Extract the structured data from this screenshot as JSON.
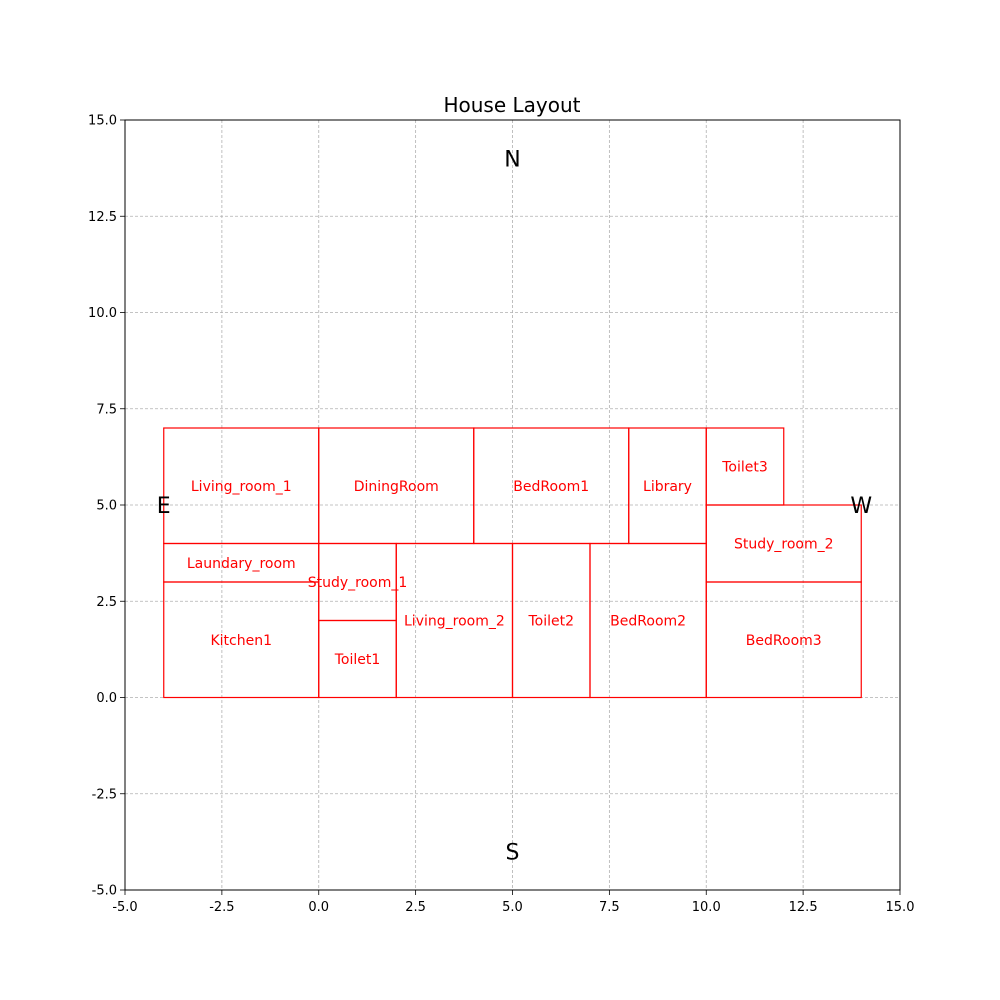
{
  "chart_data": {
    "type": "floorplan",
    "title": "House Layout",
    "xlim": [
      -5,
      15
    ],
    "ylim": [
      -5,
      15
    ],
    "xticks": [
      "-5.0",
      "-2.5",
      "0.0",
      "2.5",
      "5.0",
      "7.5",
      "10.0",
      "12.5",
      "15.0"
    ],
    "yticks": [
      "-5.0",
      "-2.5",
      "0.0",
      "2.5",
      "5.0",
      "7.5",
      "10.0",
      "12.5",
      "15.0"
    ],
    "grid": true,
    "room_color": "#ff0000",
    "rooms": [
      {
        "name": "Living_room_1",
        "x": -4,
        "y": 4,
        "w": 4,
        "h": 3
      },
      {
        "name": "DiningRoom",
        "x": 0,
        "y": 4,
        "w": 4,
        "h": 3
      },
      {
        "name": "BedRoom1",
        "x": 4,
        "y": 4,
        "w": 4,
        "h": 3
      },
      {
        "name": "Library",
        "x": 8,
        "y": 4,
        "w": 2,
        "h": 3
      },
      {
        "name": "Toilet3",
        "x": 10,
        "y": 5,
        "w": 2,
        "h": 2
      },
      {
        "name": "Study_room_2",
        "x": 10,
        "y": 3,
        "w": 4,
        "h": 2
      },
      {
        "name": "Laundary_room",
        "x": -4,
        "y": 3,
        "w": 4,
        "h": 1
      },
      {
        "name": "Kitchen1",
        "x": -4,
        "y": 0,
        "w": 4,
        "h": 3
      },
      {
        "name": "Study_room_1",
        "x": 0,
        "y": 2,
        "w": 2,
        "h": 2
      },
      {
        "name": "Toilet1",
        "x": 0,
        "y": 0,
        "w": 2,
        "h": 2
      },
      {
        "name": "Living_room_2",
        "x": 2,
        "y": 0,
        "w": 3,
        "h": 4
      },
      {
        "name": "Toilet2",
        "x": 5,
        "y": 0,
        "w": 2,
        "h": 4
      },
      {
        "name": "BedRoom2",
        "x": 7,
        "y": 0,
        "w": 3,
        "h": 4
      },
      {
        "name": "BedRoom3",
        "x": 10,
        "y": 0,
        "w": 4,
        "h": 3
      }
    ],
    "compass": [
      {
        "label": "N",
        "x": 5,
        "y": 14
      },
      {
        "label": "S",
        "x": 5,
        "y": -4
      },
      {
        "label": "E",
        "x": -4,
        "y": 5
      },
      {
        "label": "W",
        "x": 14,
        "y": 5
      }
    ]
  }
}
